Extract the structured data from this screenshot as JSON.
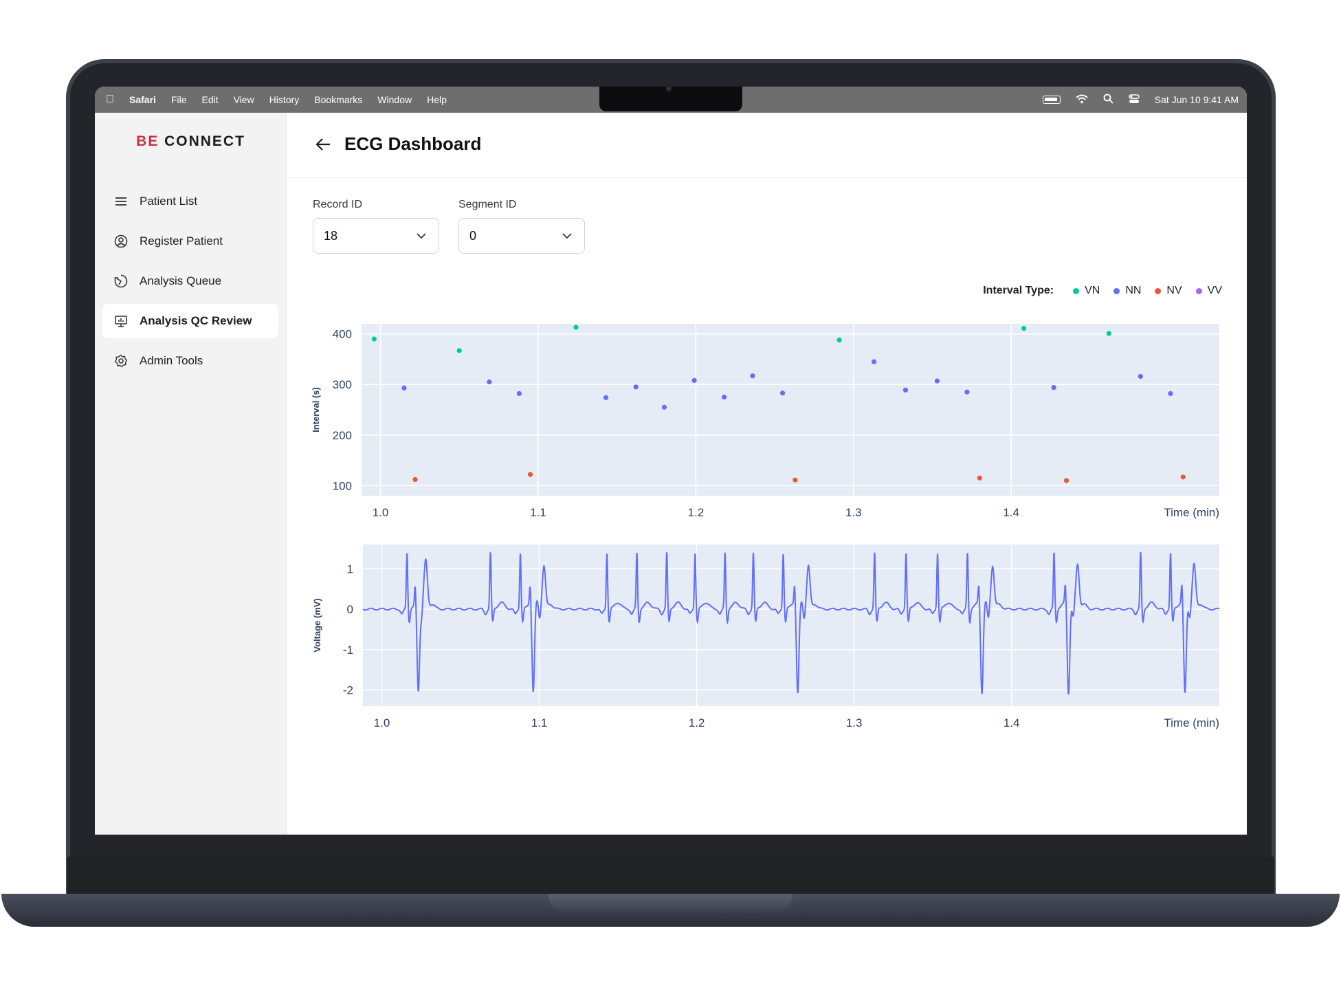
{
  "menubar": {
    "app": "Safari",
    "items": [
      "File",
      "Edit",
      "View",
      "History",
      "Bookmarks",
      "Window",
      "Help"
    ],
    "datetime": "Sat Jun 10  9:41 AM"
  },
  "sidebar": {
    "logo_accent": "BE",
    "logo_main": "CONNECT",
    "items": [
      {
        "label": "Patient List",
        "icon": "menu-icon"
      },
      {
        "label": "Register Patient",
        "icon": "user-circle-icon"
      },
      {
        "label": "Analysis Queue",
        "icon": "queue-icon"
      },
      {
        "label": "Analysis QC Review",
        "icon": "monitor-chart-icon",
        "active": true
      },
      {
        "label": "Admin Tools",
        "icon": "gear-icon"
      }
    ]
  },
  "header": {
    "title": "ECG Dashboard"
  },
  "filters": {
    "record_label": "Record ID",
    "record_value": "18",
    "segment_label": "Segment ID",
    "segment_value": "0"
  },
  "colors": {
    "VN": "#00cc96",
    "NN": "#636efa",
    "NV": "#ef553b",
    "VV": "#ab63fa",
    "plot_bg": "#e5ecf6",
    "ecg_line": "#636efa"
  },
  "legend": {
    "title": "Interval Type:",
    "entries": [
      "VN",
      "NN",
      "NV",
      "VV"
    ]
  },
  "chart_data": [
    {
      "type": "scatter",
      "xlabel": "Time (min)",
      "ylabel": "Interval (s)",
      "xlim": [
        0.988,
        1.532
      ],
      "ylim": [
        80,
        420
      ],
      "xticks": [
        "1.0",
        "1.1",
        "1.2",
        "1.3",
        "1.4"
      ],
      "yticks": [
        "400",
        "300",
        "200",
        "100"
      ],
      "series": [
        {
          "name": "VN",
          "points": [
            [
              0.996,
              390
            ],
            [
              1.05,
              367
            ],
            [
              1.124,
              413
            ],
            [
              1.291,
              388
            ],
            [
              1.408,
              411
            ],
            [
              1.462,
              401
            ]
          ]
        },
        {
          "name": "NN",
          "points": [
            [
              1.015,
              293
            ],
            [
              1.069,
              305
            ],
            [
              1.088,
              282
            ],
            [
              1.143,
              274
            ],
            [
              1.162,
              295
            ],
            [
              1.18,
              255
            ],
            [
              1.199,
              308
            ],
            [
              1.218,
              275
            ],
            [
              1.236,
              317
            ],
            [
              1.255,
              283
            ],
            [
              1.313,
              345
            ],
            [
              1.333,
              289
            ],
            [
              1.353,
              307
            ],
            [
              1.372,
              285
            ],
            [
              1.427,
              294
            ],
            [
              1.482,
              316
            ],
            [
              1.501,
              282
            ]
          ]
        },
        {
          "name": "NV",
          "points": [
            [
              1.022,
              112
            ],
            [
              1.095,
              122
            ],
            [
              1.263,
              111
            ],
            [
              1.38,
              115
            ],
            [
              1.435,
              110
            ],
            [
              1.509,
              117
            ]
          ]
        },
        {
          "name": "VV",
          "points": []
        }
      ]
    },
    {
      "type": "line",
      "xlabel": "Time (min)",
      "ylabel": "Voltage (mV)",
      "xlim": [
        0.988,
        1.532
      ],
      "ylim": [
        -2.4,
        1.6
      ],
      "xticks": [
        "1.0",
        "1.1",
        "1.2",
        "1.3",
        "1.4"
      ],
      "yticks": [
        "1",
        "0",
        "-1",
        "-2"
      ],
      "normal_beats": [
        1.016,
        1.069,
        1.088,
        1.143,
        1.162,
        1.181,
        1.199,
        1.218,
        1.236,
        1.255,
        1.313,
        1.333,
        1.353,
        1.372,
        1.427,
        1.482,
        1.501
      ],
      "ectopic_beats": [
        1.022,
        1.095,
        1.263,
        1.38,
        1.435,
        1.509
      ],
      "ectopic_followers": [
        1.028,
        1.103,
        1.271,
        1.388,
        1.442,
        1.516
      ],
      "normal_peak_mv": 1.4,
      "ectopic_trough_mv": -2.2,
      "baseline_mv": 0.0
    }
  ]
}
